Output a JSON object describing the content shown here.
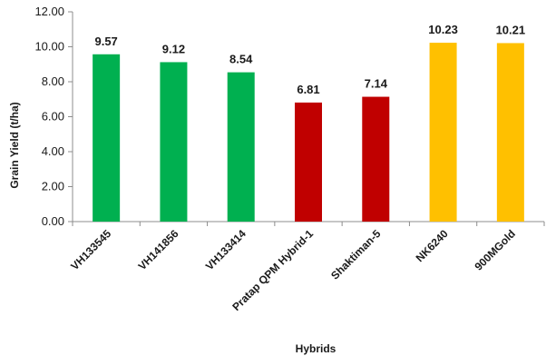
{
  "chart_data": {
    "type": "bar",
    "categories": [
      "VH133545",
      "VH141856",
      "VH133414",
      "Pratap QPM Hybrid-1",
      "Shaktiman-5",
      "NK6240",
      "900MGold"
    ],
    "values": [
      9.57,
      9.12,
      8.54,
      6.81,
      7.14,
      10.23,
      10.21
    ],
    "data_labels": [
      "9.57",
      "9.12",
      "8.54",
      "6.81",
      "7.14",
      "10.23",
      "10.21"
    ],
    "bar_colors": [
      "#00b050",
      "#00b050",
      "#00b050",
      "#c00000",
      "#c00000",
      "#ffc000",
      "#ffc000"
    ],
    "xlabel": "Hybrids",
    "ylabel": "Grain Yield (t/ha)",
    "ylim": [
      0,
      12
    ],
    "yticks": [
      0,
      2,
      4,
      6,
      8,
      10,
      12
    ],
    "ytick_labels": [
      "0.00",
      "2.00",
      "4.00",
      "6.00",
      "8.00",
      "10.00",
      "12.00"
    ],
    "grid": false,
    "legend": "none"
  }
}
